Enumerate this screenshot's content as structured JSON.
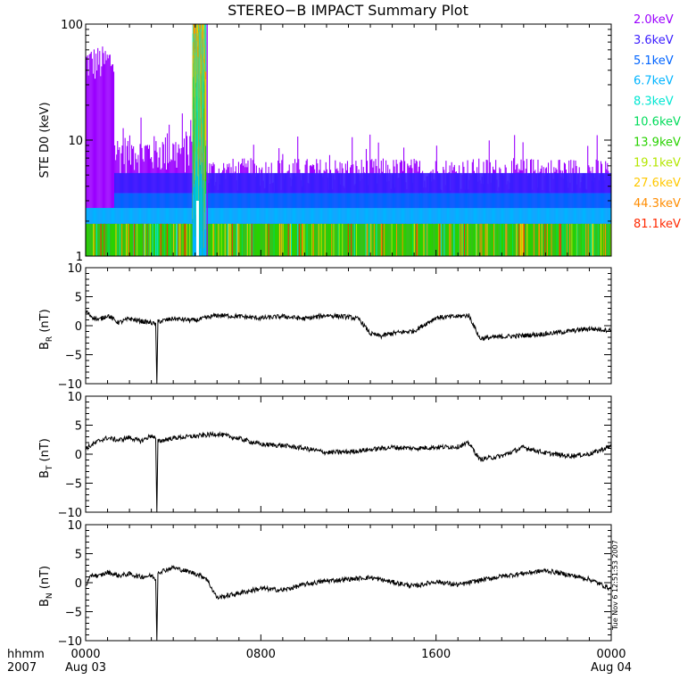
{
  "title": "STEREO−B IMPACT Summary Plot",
  "timestamp": "Tue Nov  6 12:51:53 2007",
  "time_axis": {
    "left_label_top": "hhmm",
    "left_label_bottom": "2007",
    "ticks": [
      {
        "hour": 0,
        "top": "0000",
        "bottom": "Aug 03"
      },
      {
        "hour": 8,
        "top": "0800",
        "bottom": ""
      },
      {
        "hour": 16,
        "top": "1600",
        "bottom": ""
      },
      {
        "hour": 24,
        "top": "0000",
        "bottom": "Aug 04"
      }
    ]
  },
  "chart_data": [
    {
      "type": "area",
      "ylabel": "STE D0 (keV)",
      "yscale": "log",
      "ylim": [
        1,
        100
      ],
      "yticks": [
        "1",
        "10",
        "100"
      ],
      "xlim_hours": [
        0,
        24
      ],
      "channels": [
        {
          "name": "2.0keV",
          "color": "#9b00ff"
        },
        {
          "name": "3.6keV",
          "color": "#3a1cff"
        },
        {
          "name": "5.1keV",
          "color": "#0064ff"
        },
        {
          "name": "6.7keV",
          "color": "#00b4ff"
        },
        {
          "name": "8.3keV",
          "color": "#00e6d2"
        },
        {
          "name": "10.6keV",
          "color": "#00dc5a"
        },
        {
          "name": "13.9keV",
          "color": "#28d200"
        },
        {
          "name": "19.1keV",
          "color": "#b4e600"
        },
        {
          "name": "27.6keV",
          "color": "#ffc800"
        },
        {
          "name": "44.3keV",
          "color": "#ff8c00"
        },
        {
          "name": "81.1keV",
          "color": "#ff2800"
        }
      ],
      "segments": [
        {
          "x": [
            0.0,
            1.3
          ],
          "level_range": [
            30,
            60
          ],
          "description_color": "#9b00ff"
        },
        {
          "x": [
            1.3,
            4.9
          ],
          "level_range": [
            4,
            11
          ]
        },
        {
          "x": [
            4.9,
            5.5
          ],
          "level_range": [
            50,
            100
          ]
        },
        {
          "x": [
            5.5,
            24.0
          ],
          "level_range": [
            3,
            7
          ]
        }
      ]
    },
    {
      "type": "line",
      "ylabel_main": "B",
      "ylabel_sub": "R",
      "ylabel_unit": "(nT)",
      "ylim": [
        -10,
        10
      ],
      "yticks": [
        "−10",
        "−5",
        "0",
        "5",
        "10"
      ],
      "x_hours": [
        0,
        0.3,
        0.6,
        1,
        1.5,
        2,
        2.5,
        3,
        3.2,
        3.25,
        3.3,
        4,
        5,
        6,
        7,
        8,
        9,
        10,
        11,
        12,
        12.5,
        13,
        13.5,
        14,
        15,
        16,
        17,
        17.5,
        18,
        19,
        20,
        21,
        22,
        23,
        24
      ],
      "values": [
        2.5,
        1.5,
        1.0,
        1.8,
        0.5,
        1.2,
        0.8,
        0.5,
        0.2,
        -10,
        0.7,
        1.2,
        0.9,
        1.8,
        1.6,
        1.3,
        1.6,
        1.2,
        1.8,
        1.5,
        1.1,
        -1.4,
        -1.8,
        -1.3,
        -0.9,
        1.4,
        1.6,
        1.8,
        -2.2,
        -1.9,
        -1.7,
        -1.4,
        -1.0,
        -0.5,
        -0.8
      ]
    },
    {
      "type": "line",
      "ylabel_main": "B",
      "ylabel_sub": "T",
      "ylabel_unit": "(nT)",
      "ylim": [
        -10,
        10
      ],
      "yticks": [
        "−10",
        "−5",
        "0",
        "5",
        "10"
      ],
      "x_hours": [
        0,
        0.3,
        0.6,
        1,
        1.5,
        2,
        2.5,
        3,
        3.2,
        3.25,
        3.3,
        4,
        5,
        6,
        7,
        8,
        9,
        10,
        11,
        12,
        13,
        14,
        15,
        16,
        17,
        17.5,
        18,
        19,
        20,
        21,
        22,
        23,
        24
      ],
      "values": [
        1.0,
        1.6,
        2.3,
        2.8,
        2.4,
        2.9,
        2.2,
        3.2,
        2.6,
        -10,
        2.2,
        2.8,
        3.1,
        3.5,
        2.7,
        1.7,
        1.5,
        1.0,
        0.3,
        0.4,
        0.8,
        1.2,
        1.0,
        1.2,
        1.3,
        1.9,
        -0.9,
        -0.3,
        1.2,
        0.2,
        -0.3,
        0.0,
        1.4
      ]
    },
    {
      "type": "line",
      "ylabel_main": "B",
      "ylabel_sub": "N",
      "ylabel_unit": "(nT)",
      "ylim": [
        -10,
        10
      ],
      "yticks": [
        "−10",
        "−5",
        "0",
        "5",
        "10"
      ],
      "x_hours": [
        0,
        0.3,
        0.6,
        1,
        1.5,
        2,
        2.5,
        3,
        3.2,
        3.25,
        3.3,
        4,
        5,
        5.5,
        6,
        7,
        8,
        9,
        10,
        11,
        12,
        13,
        14,
        15,
        16,
        17,
        18,
        19,
        20,
        21,
        22,
        23,
        24
      ],
      "values": [
        -0.5,
        1.4,
        1.1,
        1.8,
        1.2,
        1.5,
        1.0,
        1.2,
        0.6,
        -10,
        1.8,
        2.6,
        1.6,
        0.8,
        -2.6,
        -1.8,
        -1.0,
        -1.3,
        -0.3,
        0.3,
        0.6,
        0.9,
        0.1,
        -0.6,
        0.2,
        -0.4,
        0.4,
        1.1,
        1.6,
        2.1,
        1.4,
        0.6,
        -1.1
      ]
    }
  ]
}
